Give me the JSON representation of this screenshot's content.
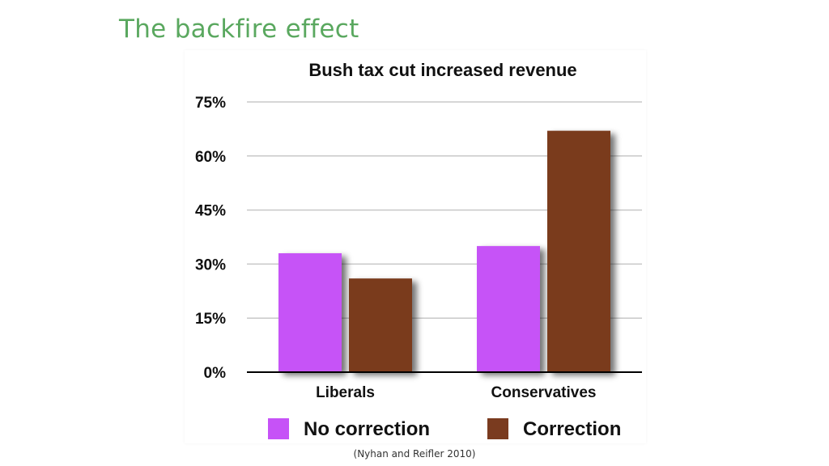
{
  "slide": {
    "title": "The backfire effect",
    "citation": "(Nyhan and Reifler 2010)"
  },
  "colors": {
    "title": "#5aa85f",
    "no_correction": "#c652f7",
    "correction": "#7a3b1f",
    "gridline": "#c8c8c8",
    "axis": "#000000"
  },
  "chart_data": {
    "type": "bar",
    "title": "Bush tax cut increased revenue",
    "categories": [
      "Liberals",
      "Conservatives"
    ],
    "series": [
      {
        "name": "No correction",
        "values": [
          33,
          35
        ],
        "color": "#c652f7"
      },
      {
        "name": "Correction",
        "values": [
          26,
          67
        ],
        "color": "#7a3b1f"
      }
    ],
    "ylim": [
      0,
      75
    ],
    "yticks": [
      0,
      15,
      30,
      45,
      60,
      75
    ],
    "ytick_labels": [
      "0%",
      "15%",
      "30%",
      "45%",
      "60%",
      "75%"
    ],
    "grid": true,
    "legend_position": "bottom"
  }
}
